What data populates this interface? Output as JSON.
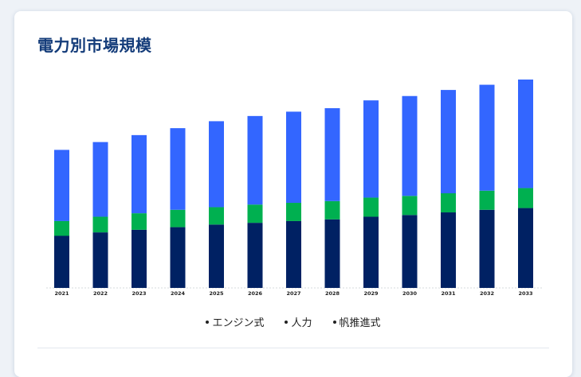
{
  "title": "電力別市場規模",
  "chart_data": {
    "type": "bar",
    "stacked": true,
    "categories": [
      "2021",
      "2022",
      "2023",
      "2024",
      "2025",
      "2026",
      "2027",
      "2028",
      "2029",
      "2030",
      "2031",
      "2032",
      "2033"
    ],
    "series": [
      {
        "name": "エンジン式",
        "color": "#002163",
        "values": [
          60,
          64,
          67,
          70,
          73,
          75,
          77,
          79,
          82,
          84,
          87,
          90,
          92
        ]
      },
      {
        "name": "人力",
        "color": "#00b050",
        "values": [
          17,
          18,
          19,
          20,
          20,
          21,
          21,
          21,
          22,
          22,
          22,
          22,
          23
        ]
      },
      {
        "name": "帆推進式",
        "color": "#3366ff",
        "values": [
          82,
          86,
          90,
          94,
          99,
          102,
          105,
          107,
          112,
          115,
          119,
          122,
          125
        ]
      }
    ],
    "ylim": [
      0,
      240
    ],
    "grid": false,
    "legend_position": "bottom"
  }
}
